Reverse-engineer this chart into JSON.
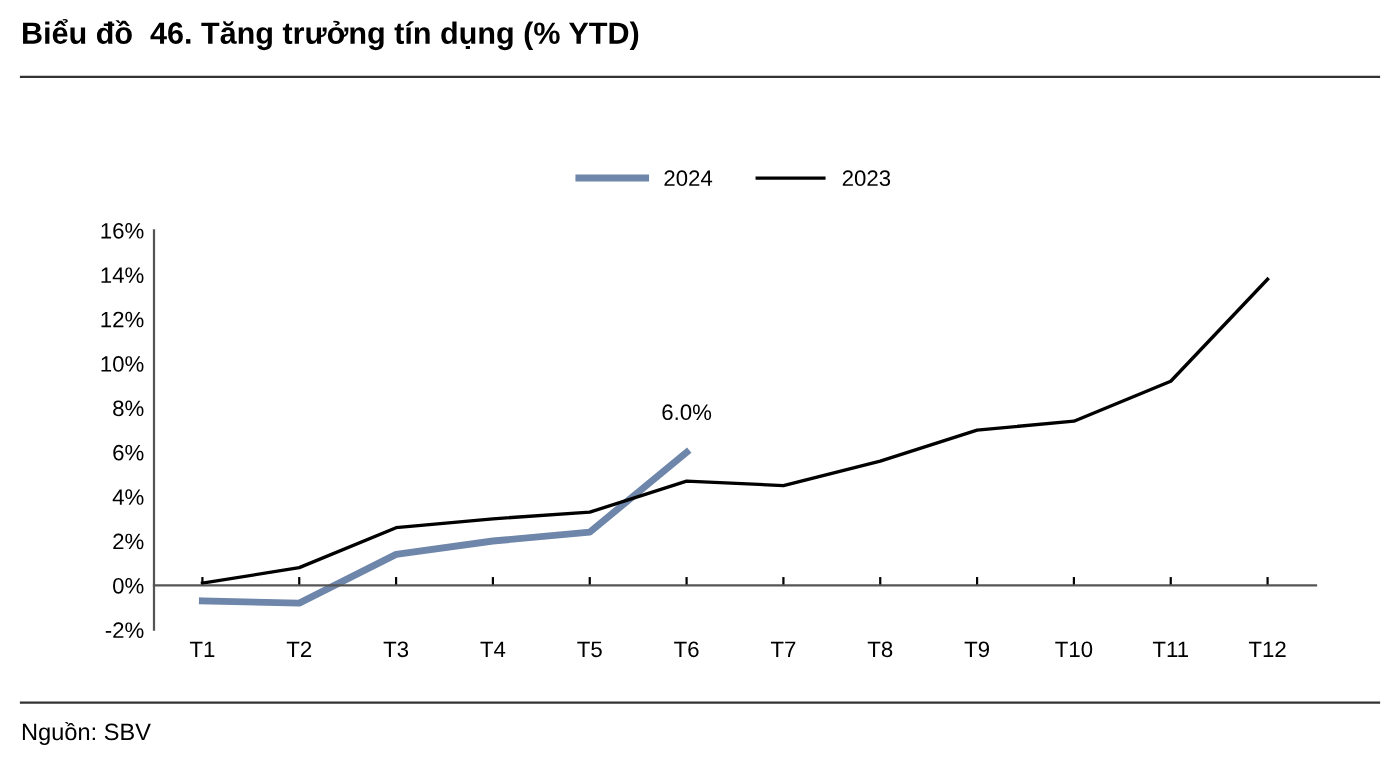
{
  "chart_data": {
    "type": "line",
    "title": "Biểu đồ  46. Tăng trưởng tín dụng (% YTD)",
    "categories": [
      "T1",
      "T2",
      "T3",
      "T4",
      "T5",
      "T6",
      "T7",
      "T8",
      "T9",
      "T10",
      "T11",
      "T12"
    ],
    "series": [
      {
        "name": "2024",
        "color": "#6f86ab",
        "values": [
          -0.7,
          -0.8,
          1.4,
          2.0,
          2.4,
          6.0,
          null,
          null,
          null,
          null,
          null,
          null
        ],
        "value_labels": [
          null,
          null,
          null,
          null,
          null,
          "6.0%",
          null,
          null,
          null,
          null,
          null,
          null
        ]
      },
      {
        "name": "2023",
        "color": "#000000",
        "values": [
          0.1,
          0.8,
          2.6,
          3.0,
          3.3,
          4.7,
          4.5,
          5.6,
          7.0,
          7.4,
          9.2,
          13.8
        ]
      }
    ],
    "ylim": [
      -2,
      16
    ],
    "yticks": [
      {
        "value": -2,
        "label": "-2%"
      },
      {
        "value": 0,
        "label": "0%"
      },
      {
        "value": 2,
        "label": "2%"
      },
      {
        "value": 4,
        "label": "4%"
      },
      {
        "value": 6,
        "label": "6%"
      },
      {
        "value": 8,
        "label": "8%"
      },
      {
        "value": 10,
        "label": "10%"
      },
      {
        "value": 12,
        "label": "12%"
      },
      {
        "value": 14,
        "label": "14%"
      },
      {
        "value": 16,
        "label": "16%"
      }
    ],
    "grid": false,
    "legend": "top",
    "marker": "none",
    "line_style": "solid",
    "annotations": [
      "Nguồn: SBV"
    ]
  }
}
